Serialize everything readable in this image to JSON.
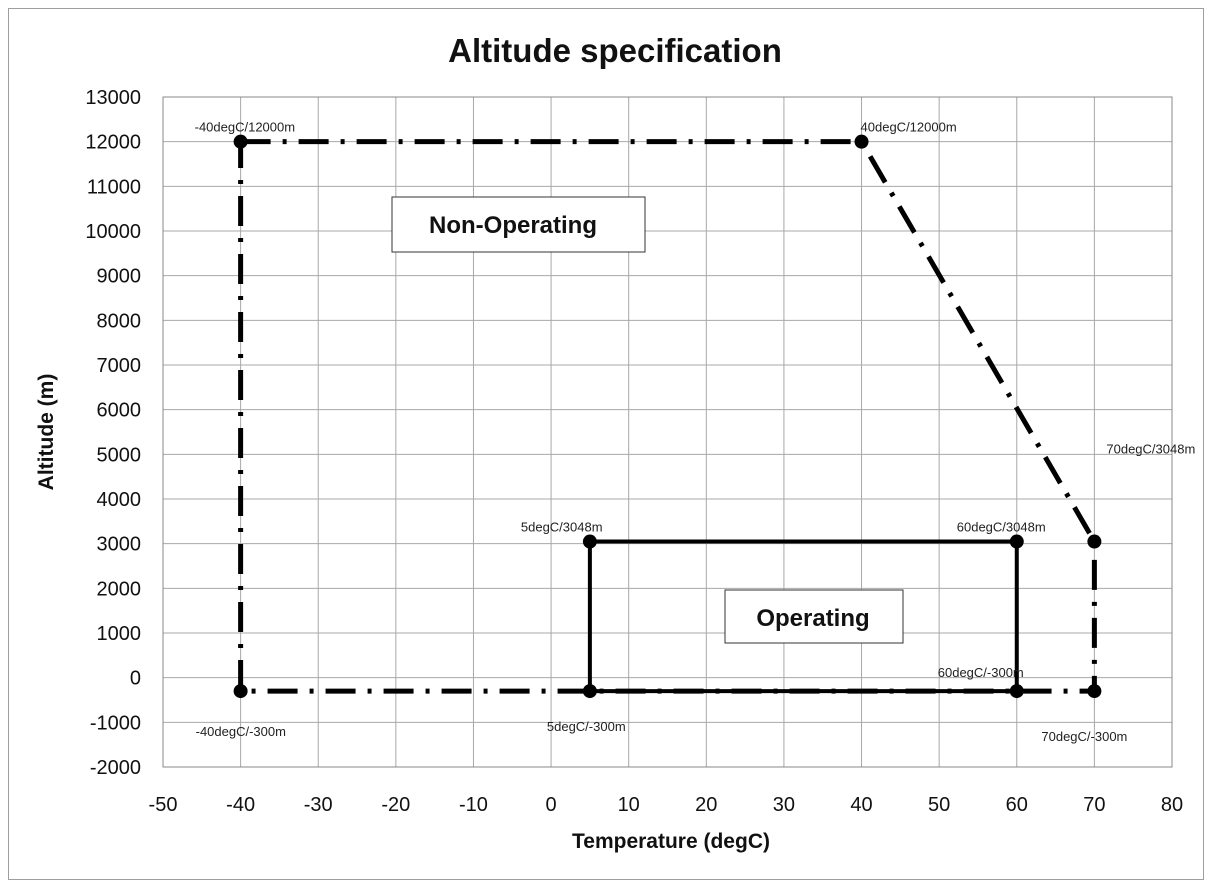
{
  "chart_data": {
    "type": "line",
    "title": "Altitude specification",
    "xlabel": "Temperature (degC)",
    "ylabel": "Altitude (m)",
    "xlim": [
      -50,
      80
    ],
    "ylim": [
      -2000,
      13000
    ],
    "xticks": [
      -50,
      -40,
      -30,
      -20,
      -10,
      0,
      10,
      20,
      30,
      40,
      50,
      60,
      70,
      80
    ],
    "yticks": [
      -2000,
      -1000,
      0,
      1000,
      2000,
      3000,
      4000,
      5000,
      6000,
      7000,
      8000,
      9000,
      10000,
      11000,
      12000,
      13000
    ],
    "grid": true,
    "series": [
      {
        "key": "non-operating",
        "style": "dash-dot",
        "x": [
          -40,
          40,
          70,
          70,
          -40,
          -40
        ],
        "y": [
          12000,
          12000,
          3048,
          -300,
          -300,
          12000
        ]
      },
      {
        "key": "operating",
        "style": "solid",
        "x": [
          5,
          60,
          60,
          5,
          5
        ],
        "y": [
          3048,
          3048,
          -300,
          -300,
          3048
        ]
      }
    ],
    "points": [
      {
        "x": -40,
        "y": 12000,
        "label": "-40degC/12000m"
      },
      {
        "x": 40,
        "y": 12000,
        "label": "40degC/12000m"
      },
      {
        "x": 70,
        "y": 3048,
        "label": "70degC/3048m"
      },
      {
        "x": 5,
        "y": 3048,
        "label": "5degC/3048m"
      },
      {
        "x": 60,
        "y": 3048,
        "label": "60degC/3048m"
      },
      {
        "x": 60,
        "y": -300,
        "label": "60degC/-300m"
      },
      {
        "x": -40,
        "y": -300,
        "label": "-40degC/-300m"
      },
      {
        "x": 5,
        "y": -300,
        "label": "5degC/-300m"
      },
      {
        "x": 70,
        "y": -300,
        "label": "70degC/-300m"
      }
    ],
    "annotations": [
      "Non-Operating",
      "Operating"
    ]
  }
}
